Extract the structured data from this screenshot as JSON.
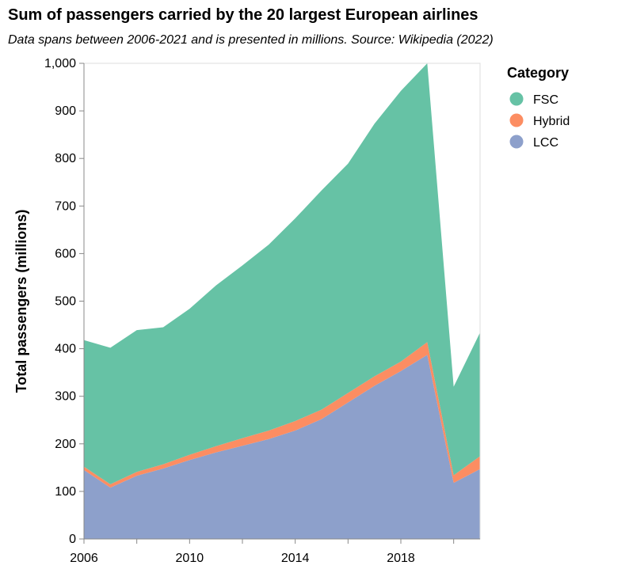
{
  "chart_data": {
    "type": "area",
    "title": "Sum of passengers carried by the 20 largest European airlines",
    "subtitle": "Data spans between 2006-2021 and is presented in millions. Source: Wikipedia (2022)",
    "xlabel": "",
    "ylabel": "Total passengers (millions)",
    "x": [
      2006,
      2007,
      2008,
      2009,
      2010,
      2011,
      2012,
      2013,
      2014,
      2015,
      2016,
      2017,
      2018,
      2019,
      2020,
      2021
    ],
    "xlim": [
      2006,
      2021
    ],
    "ylim": [
      0,
      1000
    ],
    "x_ticks": [
      2006,
      2010,
      2014,
      2018
    ],
    "x_tick_labels": [
      "2006",
      "2010",
      "2014",
      "2018"
    ],
    "y_ticks": [
      0,
      100,
      200,
      300,
      400,
      500,
      600,
      700,
      800,
      900,
      1000
    ],
    "y_tick_labels": [
      "0",
      "100",
      "200",
      "300",
      "400",
      "500",
      "600",
      "700",
      "800",
      "900",
      "1,000"
    ],
    "stacked": true,
    "grid": false,
    "legend": {
      "title": "Category",
      "position": "right"
    },
    "series": [
      {
        "name": "LCC",
        "color": "#8da0cb",
        "values": [
          145,
          108,
          133,
          148,
          166,
          182,
          196,
          210,
          228,
          252,
          287,
          322,
          353,
          387,
          118,
          147
        ]
      },
      {
        "name": "Hybrid",
        "color": "#fc8d62",
        "values": [
          7,
          7,
          8,
          9,
          11,
          13,
          16,
          18,
          20,
          20,
          20,
          20,
          20,
          27,
          16,
          27
        ]
      },
      {
        "name": "FSC",
        "color": "#66c2a5",
        "values": [
          266,
          287,
          298,
          288,
          307,
          338,
          363,
          391,
          426,
          461,
          482,
          531,
          569,
          586,
          186,
          260
        ]
      }
    ],
    "legend_order": [
      "FSC",
      "Hybrid",
      "LCC"
    ]
  }
}
